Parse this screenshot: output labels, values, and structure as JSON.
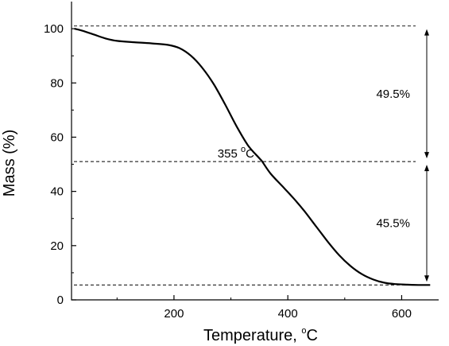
{
  "chart_data": {
    "type": "line",
    "title": "",
    "xlabel": "Temperature, °C",
    "xlabel_text": "Temperature, ",
    "xlabel_sup": "o",
    "xlabel_unit": "C",
    "ylabel": "Mass (%)",
    "xlim": [
      20,
      665
    ],
    "ylim": [
      0,
      110
    ],
    "x_ticks": [
      200,
      400,
      600
    ],
    "y_ticks": [
      0,
      20,
      40,
      60,
      80,
      100
    ],
    "grid": false,
    "legend": "none",
    "line_color": "#000000",
    "series": [
      {
        "x": [
          25,
          40,
          60,
          80,
          100,
          130,
          160,
          190,
          210,
          230,
          250,
          270,
          290,
          310,
          330,
          350,
          355,
          370,
          390,
          410,
          430,
          450,
          470,
          490,
          510,
          530,
          550,
          570,
          590,
          610,
          630,
          650
        ],
        "y": [
          100,
          99.2,
          97.8,
          96.4,
          95.5,
          95.0,
          94.6,
          94.0,
          92.8,
          90.0,
          85.5,
          79.5,
          72.0,
          64.0,
          57.0,
          52.2,
          51,
          46.5,
          42.0,
          37.5,
          32.5,
          27.0,
          21.5,
          16.5,
          12.5,
          9.5,
          7.5,
          6.3,
          5.8,
          5.6,
          5.5,
          5.5
        ]
      }
    ],
    "reference_lines": [
      {
        "y": 101
      },
      {
        "y": 51
      },
      {
        "y": 5.5
      }
    ],
    "annotations": [
      {
        "text": "49.5%",
        "from_y": 101,
        "to_y": 51
      },
      {
        "text": "45.5%",
        "from_y": 51,
        "to_y": 5.5
      }
    ],
    "point_label": {
      "x": 355,
      "y": 51,
      "value": "355",
      "sup": "o",
      "unit": "C"
    }
  }
}
